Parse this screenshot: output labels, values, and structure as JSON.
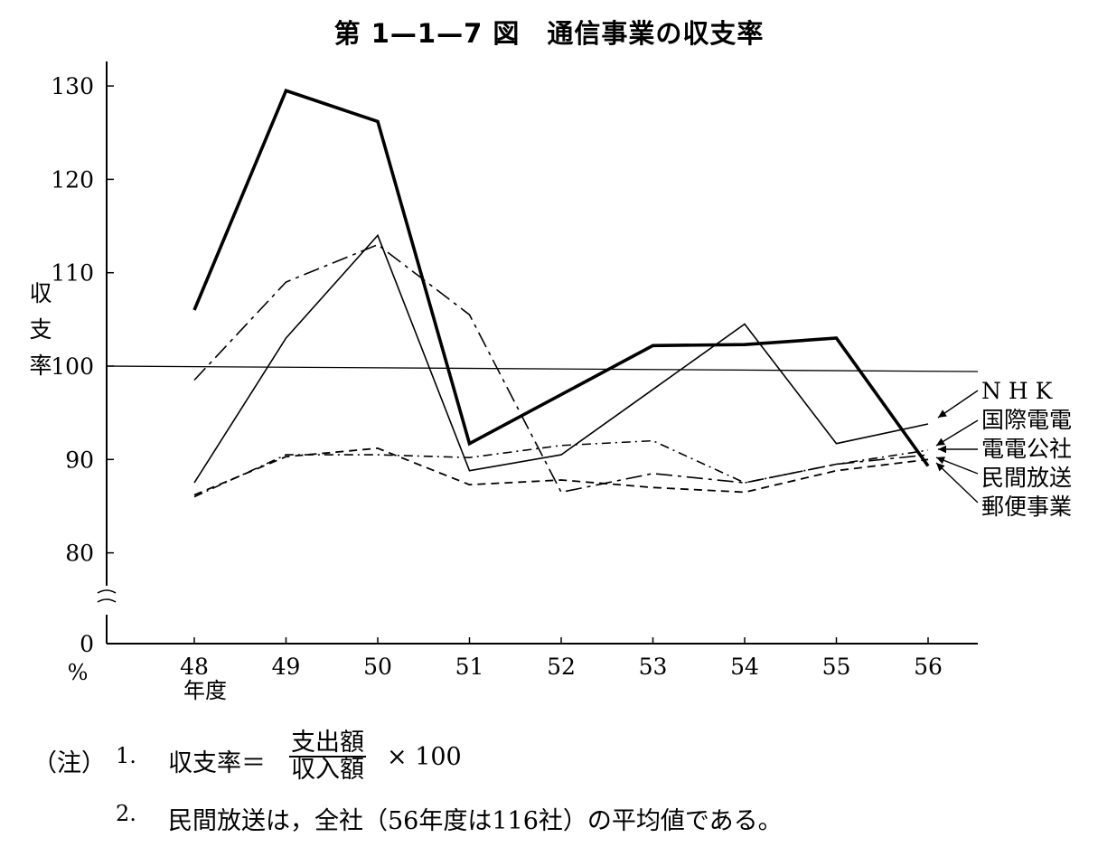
{
  "title": "第 1—1—7 図　通信事業の収支率",
  "chart_data": {
    "type": "line",
    "title": "第 1—1—7 図　通信事業の収支率",
    "ylabel": "収支率",
    "y_unit": "%",
    "x_unit": "年度",
    "x": [
      "48",
      "49",
      "50",
      "51",
      "52",
      "53",
      "54",
      "55",
      "56"
    ],
    "yticks": [
      "0",
      "80",
      "90",
      "100",
      "110",
      "120",
      "130"
    ],
    "ylim": [
      80,
      132
    ],
    "y_break": true,
    "reference_line": 100,
    "series": [
      {
        "name": "N H K",
        "style": "thin-solid",
        "values": [
          87.5,
          103,
          114,
          88.8,
          90.5,
          97.5,
          104.5,
          91.7,
          93.8
        ]
      },
      {
        "name": "国際電電",
        "style": "dash-dot-long",
        "values": [
          98.5,
          109,
          113,
          105.5,
          86.5,
          88.5,
          87.5,
          89.5,
          90.5
        ]
      },
      {
        "name": "電電公社",
        "style": "dash-dot",
        "values": [
          86,
          90.5,
          90.5,
          90.2,
          91.5,
          92,
          87.5,
          89.5,
          91
        ]
      },
      {
        "name": "民間放送",
        "style": "dashed",
        "values": [
          86.2,
          90.3,
          91.2,
          87.3,
          87.8,
          87,
          86.5,
          88.8,
          90
        ]
      },
      {
        "name": "郵便事業",
        "style": "thick-solid",
        "values": [
          106,
          129.5,
          126.2,
          91.7,
          null,
          102.2,
          102.3,
          103,
          89.3
        ]
      }
    ],
    "extra_series_note": "郵便事業 52年度 value not marked; line passes straight through",
    "legend_placement": "right"
  },
  "notes": {
    "mark": "（注）",
    "n1": "1.",
    "formula_label": "収支率＝",
    "numerator": "支出額",
    "denominator": "収入額",
    "times": "× 100",
    "n2": "2.",
    "text2": "民間放送は，全社（56年度は116社）の平均値である。"
  }
}
